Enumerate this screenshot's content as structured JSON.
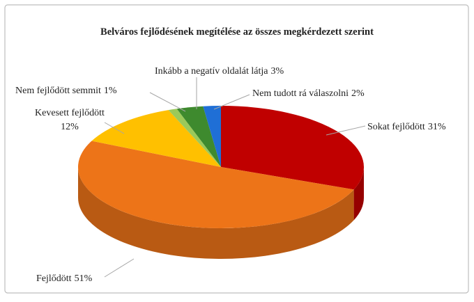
{
  "chart_data": {
    "type": "pie",
    "title": "Belváros fejlődésének megítélése az összes megkérdezett szerint",
    "categories": [
      "Sokat fejlődött",
      "Fejlődött",
      "Kevesett fejlődött",
      "Nem fejlődött semmit",
      "Inkább a negatív oldalát látja",
      "Nem tudott rá válaszolni"
    ],
    "values": [
      31,
      51,
      12,
      1,
      3,
      2
    ],
    "value_labels": [
      "31%",
      "51%",
      "12%",
      "1%",
      "3%",
      "2%"
    ],
    "colors": [
      "#c00000",
      "#ed7418",
      "#ffc000",
      "#9bc95a",
      "#3e8a2e",
      "#1f6fd6"
    ]
  }
}
